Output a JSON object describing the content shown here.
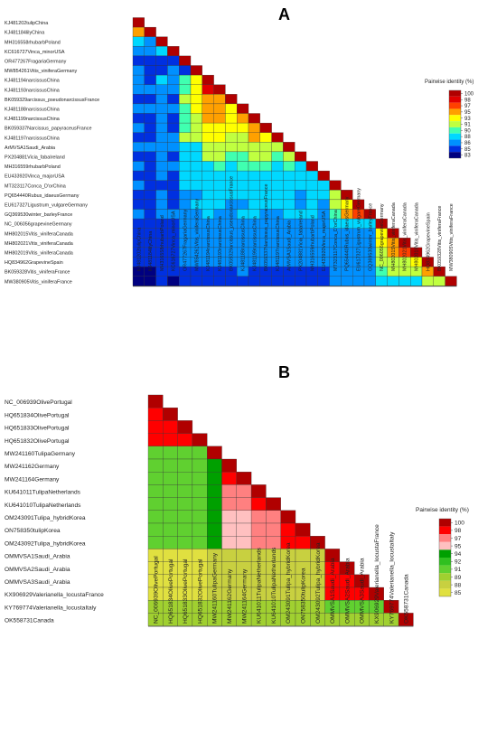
{
  "chart_data": [
    {
      "type": "heatmap",
      "panel": "A",
      "labels": [
        "KJ481202tulipChina",
        "KJ481184lilyChina",
        "MH316558rhubarbPoland",
        "KC616727Vinca_minorUSA",
        "OR477267FragariaGermany",
        "MW854261Vitis_viniferaGermany",
        "KJ481194narcissusChina",
        "KJ481193narcissusChina",
        "BK059329arcissus_pseudonarcissusFrance",
        "KJ481188narcissusChina",
        "KJ481199narcissusChina",
        "BK059337Narcissus_papyraceusFrance",
        "KJ481197narcissusChina",
        "ArMVSA1Saudi_Arabia",
        "PX204881Vicia_fabaIreland",
        "MH316559rhubarbPoland",
        "EU433920Vinca_majorUSA",
        "MT323117Conca_D'orChina",
        "PQ654440Rubus_idaeusGermany",
        "EU617327Ligustrum_vulgareGermany",
        "GQ369530winter_barleyFrance",
        "NC_006056grapevineGermany",
        "MH802015Vitis_viniferaCanada",
        "MH802021Vitis_viniferaCanada",
        "MH802019Vitis_viniferaCanada",
        "HQ834962GrapevineSpain",
        "BK059328Vitis_viniferaFrance",
        "MW380905Vitis_viniferaFrance"
      ],
      "matrix": [
        [
          100
        ],
        [
          95,
          100
        ],
        [
          88,
          86,
          100
        ],
        [
          86,
          86,
          88,
          100
        ],
        [
          85,
          85,
          85,
          85,
          100
        ],
        [
          86,
          85,
          85,
          86,
          85,
          100
        ],
        [
          86,
          85,
          88,
          86,
          90,
          94,
          100
        ],
        [
          86,
          86,
          87,
          86,
          90,
          93,
          98,
          100
        ],
        [
          85,
          85,
          87,
          85,
          91,
          93,
          96,
          96,
          100
        ],
        [
          86,
          86,
          87,
          86,
          90,
          93,
          95,
          95,
          94,
          100
        ],
        [
          85,
          85,
          86,
          85,
          90,
          92,
          95,
          95,
          94,
          95,
          100
        ],
        [
          86,
          85,
          86,
          85,
          90,
          92,
          94,
          94,
          94,
          93,
          95,
          100
        ],
        [
          85,
          85,
          86,
          86,
          91,
          92,
          93,
          93,
          92,
          92,
          95,
          94,
          100
        ],
        [
          86,
          86,
          86,
          86,
          89,
          89,
          92,
          91,
          91,
          91,
          91,
          91,
          91,
          100
        ],
        [
          85,
          85,
          86,
          85,
          89,
          89,
          91,
          91,
          90,
          90,
          91,
          91,
          90,
          91,
          100
        ],
        [
          86,
          85,
          86,
          86,
          88,
          89,
          89,
          90,
          89,
          90,
          90,
          90,
          89,
          90,
          89,
          100
        ],
        [
          85,
          85,
          86,
          85,
          88,
          88,
          89,
          89,
          88,
          88,
          89,
          89,
          89,
          89,
          88,
          88,
          100
        ],
        [
          86,
          85,
          85,
          85,
          88,
          88,
          88,
          88,
          88,
          88,
          88,
          88,
          88,
          89,
          89,
          89,
          89,
          100
        ],
        [
          85,
          85,
          86,
          85,
          87,
          87,
          88,
          88,
          88,
          88,
          88,
          88,
          88,
          88,
          87,
          88,
          88,
          92,
          100
        ],
        [
          85,
          85,
          86,
          85,
          87,
          88,
          88,
          88,
          87,
          87,
          88,
          88,
          88,
          88,
          87,
          88,
          87,
          91,
          94,
          100
        ],
        [
          86,
          85,
          86,
          86,
          87,
          87,
          88,
          87,
          87,
          88,
          88,
          87,
          87,
          88,
          88,
          88,
          87,
          90,
          95,
          97,
          100
        ],
        [
          85,
          85,
          85,
          85,
          86,
          86,
          87,
          87,
          87,
          87,
          87,
          87,
          87,
          87,
          87,
          87,
          86,
          88,
          88,
          88,
          88,
          100
        ],
        [
          85,
          85,
          85,
          85,
          86,
          86,
          87,
          87,
          87,
          87,
          86,
          87,
          87,
          87,
          87,
          86,
          86,
          87,
          87,
          87,
          87,
          94,
          100
        ],
        [
          85,
          85,
          85,
          85,
          86,
          86,
          86,
          86,
          86,
          86,
          86,
          86,
          86,
          86,
          86,
          86,
          86,
          87,
          87,
          87,
          87,
          93,
          96,
          100
        ],
        [
          85,
          85,
          85,
          85,
          86,
          86,
          86,
          86,
          86,
          86,
          86,
          86,
          86,
          86,
          86,
          86,
          86,
          87,
          87,
          87,
          87,
          92,
          95,
          97,
          100
        ],
        [
          85,
          85,
          85,
          85,
          86,
          86,
          86,
          86,
          86,
          86,
          86,
          86,
          86,
          86,
          86,
          86,
          86,
          86,
          87,
          86,
          87,
          91,
          92,
          92,
          93,
          100
        ],
        [
          84,
          84,
          85,
          85,
          85,
          85,
          85,
          85,
          85,
          86,
          85,
          85,
          85,
          85,
          85,
          85,
          85,
          86,
          86,
          86,
          86,
          90,
          91,
          91,
          92,
          95,
          100
        ],
        [
          84,
          84,
          85,
          84,
          85,
          85,
          85,
          85,
          85,
          85,
          85,
          85,
          85,
          85,
          85,
          85,
          85,
          86,
          86,
          86,
          86,
          88,
          89,
          89,
          89,
          91,
          92,
          100
        ]
      ],
      "legend": {
        "title": "Pairwise identity (%)",
        "ticks": [
          "100",
          "98",
          "97",
          "95",
          "93",
          "91",
          "90",
          "88",
          "86",
          "85",
          "83"
        ],
        "colors": [
          "#b00000",
          "#e00000",
          "#ff4000",
          "#ffa000",
          "#ffff00",
          "#c0ff40",
          "#40ffb0",
          "#00d8ff",
          "#0090ff",
          "#0030e0",
          "#000080"
        ]
      }
    },
    {
      "type": "heatmap",
      "panel": "B",
      "labels": [
        "NC_006939OlivePortugal",
        "HQ651834OlivePortugal",
        "HQ651833OlivePortugal",
        "HQ651832OlivePortugal",
        "MW241160TulipaGermany",
        "MW241162Germany",
        "MW241164Germany",
        "KU641011TulipaNetherlands",
        "KU641010TulipaNetherlands",
        "OM243091Tulipa_hybridKorea",
        "ON758350tulipKorea",
        "OM243092Tulipa_hybridKorea",
        "OMMVSA1Saudi_Arabia",
        "OMMVSA2Saudi_Arabia",
        "OMMVSA3Saudi_Arabia",
        "KX906929Valerianella_locustaFrance",
        "KY769774Valerianella_locustaItaly",
        "OK558731Canada"
      ],
      "matrix": [
        [
          100
        ],
        [
          99,
          100
        ],
        [
          99,
          99,
          100
        ],
        [
          99,
          99,
          99,
          100
        ],
        [
          91,
          91,
          91,
          91,
          100
        ],
        [
          91,
          91,
          91,
          91,
          94,
          100
        ],
        [
          91,
          91,
          91,
          91,
          94,
          98,
          100
        ],
        [
          91,
          91,
          91,
          91,
          94,
          97,
          97,
          100
        ],
        [
          91,
          91,
          91,
          91,
          94,
          97,
          97,
          99,
          100
        ],
        [
          91,
          91,
          91,
          91,
          94,
          96,
          96,
          97,
          97,
          100
        ],
        [
          91,
          91,
          91,
          91,
          94,
          96,
          96,
          97,
          97,
          99,
          100
        ],
        [
          91,
          91,
          91,
          91,
          94,
          96,
          96,
          97,
          97,
          99,
          99,
          100
        ],
        [
          87,
          87,
          87,
          87,
          88,
          88,
          88,
          88,
          88,
          88,
          88,
          88,
          100
        ],
        [
          87,
          87,
          87,
          87,
          88,
          88,
          88,
          88,
          88,
          88,
          88,
          88,
          99,
          100
        ],
        [
          87,
          87,
          87,
          87,
          88,
          88,
          88,
          88,
          88,
          88,
          88,
          88,
          99,
          99,
          100
        ],
        [
          87,
          87,
          87,
          87,
          88,
          88,
          88,
          88,
          88,
          88,
          88,
          88,
          99,
          99,
          99,
          100
        ],
        [
          89,
          89,
          89,
          89,
          89,
          89,
          89,
          89,
          89,
          89,
          89,
          89,
          91,
          91,
          91,
          91,
          100
        ],
        [
          89,
          89,
          89,
          89,
          89,
          89,
          89,
          89,
          89,
          89,
          89,
          89,
          90,
          90,
          90,
          90,
          90,
          100
        ]
      ],
      "legend": {
        "title": "Pairwise identity (%)",
        "ticks": [
          "100",
          "98",
          "97",
          "95",
          "94",
          "92",
          "91",
          "89",
          "88",
          "85"
        ],
        "colors": [
          "#b00000",
          "#ff0000",
          "#ff8080",
          "#ffc0c0",
          "#00a000",
          "#30c020",
          "#60d030",
          "#a0d030",
          "#c8d040",
          "#e0e040"
        ]
      }
    }
  ]
}
